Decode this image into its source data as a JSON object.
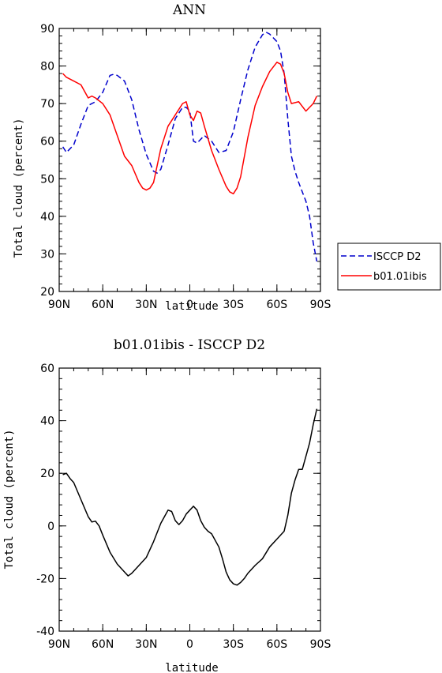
{
  "chart_data": [
    {
      "type": "line",
      "title": "ANN",
      "xlabel": "latitude",
      "ylabel": "Total cloud (percent)",
      "xlim": [
        90,
        -90
      ],
      "ylim": [
        20,
        90
      ],
      "yticks": [
        20,
        30,
        40,
        50,
        60,
        70,
        80,
        90
      ],
      "xticks": [
        {
          "value": 90,
          "label": "90N"
        },
        {
          "value": 60,
          "label": "60N"
        },
        {
          "value": 30,
          "label": "30N"
        },
        {
          "value": 0,
          "label": "0"
        },
        {
          "value": -30,
          "label": "30S"
        },
        {
          "value": -60,
          "label": "60S"
        },
        {
          "value": -90,
          "label": "90S"
        }
      ],
      "legend_position": "right-bottom",
      "series": [
        {
          "name": "ISCCP D2",
          "color": "#0000cc",
          "style": "dashed",
          "x": [
            87.5,
            85,
            80,
            75,
            70,
            65,
            60,
            55,
            52.5,
            50,
            45,
            40,
            35,
            30,
            25,
            22.5,
            20,
            15,
            10,
            5,
            2.5,
            0,
            -2.5,
            -5,
            -10,
            -15,
            -20,
            -25,
            -30,
            -35,
            -40,
            -45,
            -50,
            -52.5,
            -55,
            -60,
            -62.5,
            -65,
            -67.5,
            -70,
            -72.5,
            -75,
            -80,
            -82.5,
            -85,
            -87.5
          ],
          "y": [
            58.5,
            57,
            59,
            64.5,
            69.5,
            70.5,
            73,
            77.5,
            77.8,
            77.5,
            76,
            71,
            63,
            56.5,
            52,
            51.5,
            52.5,
            59,
            66,
            69,
            69,
            68,
            60,
            59.5,
            61.5,
            60,
            57,
            57.5,
            62.5,
            71,
            79,
            85,
            88.3,
            89,
            88.5,
            86.5,
            84,
            78,
            66,
            56,
            52,
            49,
            44,
            40,
            33,
            28
          ]
        },
        {
          "name": "b01.01ibis",
          "color": "#ff0000",
          "style": "solid",
          "x": [
            87.5,
            85,
            80,
            75,
            70,
            67.5,
            65,
            60,
            55,
            50,
            45,
            40,
            35,
            32.5,
            30,
            27.5,
            25,
            20,
            15,
            10,
            5,
            2.5,
            0,
            -2.5,
            -5,
            -7.5,
            -10,
            -15,
            -20,
            -25,
            -27.5,
            -30,
            -32.5,
            -35,
            -40,
            -45,
            -50,
            -55,
            -60,
            -62.5,
            -65,
            -67.5,
            -70,
            -75,
            -80,
            -85,
            -87.5
          ],
          "y": [
            78,
            77,
            76,
            75,
            71.5,
            72,
            71.5,
            70,
            67,
            61.5,
            56,
            53.5,
            49,
            47.5,
            47,
            47.5,
            49,
            58,
            64,
            67,
            70,
            70.5,
            67,
            65.5,
            68,
            67.5,
            64,
            57.5,
            52.5,
            48,
            46.5,
            46,
            47.5,
            50.5,
            61,
            69.5,
            74.5,
            78.5,
            81,
            80.5,
            78,
            73,
            70,
            70.5,
            68,
            70,
            72
          ]
        }
      ]
    },
    {
      "type": "line",
      "title": "b01.01ibis - ISCCP D2",
      "xlabel": "latitude",
      "ylabel": "Total cloud (percent)",
      "xlim": [
        90,
        -90
      ],
      "ylim": [
        -40,
        60
      ],
      "yticks": [
        -40,
        -20,
        0,
        20,
        40,
        60
      ],
      "xticks": [
        {
          "value": 90,
          "label": "90N"
        },
        {
          "value": 60,
          "label": "60N"
        },
        {
          "value": 30,
          "label": "30N"
        },
        {
          "value": 0,
          "label": "0"
        },
        {
          "value": -30,
          "label": "30S"
        },
        {
          "value": -60,
          "label": "60S"
        },
        {
          "value": -90,
          "label": "90S"
        }
      ],
      "series": [
        {
          "color": "#000000",
          "style": "solid",
          "x": [
            87.5,
            85,
            82.5,
            80,
            75,
            70,
            67.5,
            65,
            62.5,
            60,
            55,
            50,
            45,
            42.5,
            40,
            35,
            30,
            25,
            20,
            17.5,
            15,
            12.5,
            10,
            7.5,
            5,
            2.5,
            0,
            -2.5,
            -5,
            -7.5,
            -10,
            -12.5,
            -15,
            -20,
            -22.5,
            -25,
            -27.5,
            -30,
            -32.5,
            -35,
            -37.5,
            -40,
            -45,
            -50,
            -55,
            -60,
            -62.5,
            -65,
            -67.5,
            -70,
            -72.5,
            -75,
            -77.5,
            -80,
            -82.5,
            -85,
            -87.5
          ],
          "y": [
            19.5,
            20,
            18,
            16.5,
            10,
            3.5,
            1.5,
            1.8,
            0,
            -3.5,
            -10,
            -14.5,
            -17.5,
            -19,
            -18,
            -15,
            -12,
            -6,
            1,
            3.5,
            6,
            5.5,
            2,
            0.5,
            2,
            4.5,
            6,
            7.5,
            6,
            2,
            -0.5,
            -2,
            -3,
            -8,
            -12.5,
            -17.5,
            -20.5,
            -22,
            -22.5,
            -21.5,
            -20,
            -18,
            -15,
            -12.5,
            -8,
            -5,
            -3.5,
            -2,
            4,
            12.5,
            17.5,
            21.5,
            21.5,
            26.5,
            31.5,
            38.5,
            44.5
          ]
        }
      ]
    }
  ]
}
